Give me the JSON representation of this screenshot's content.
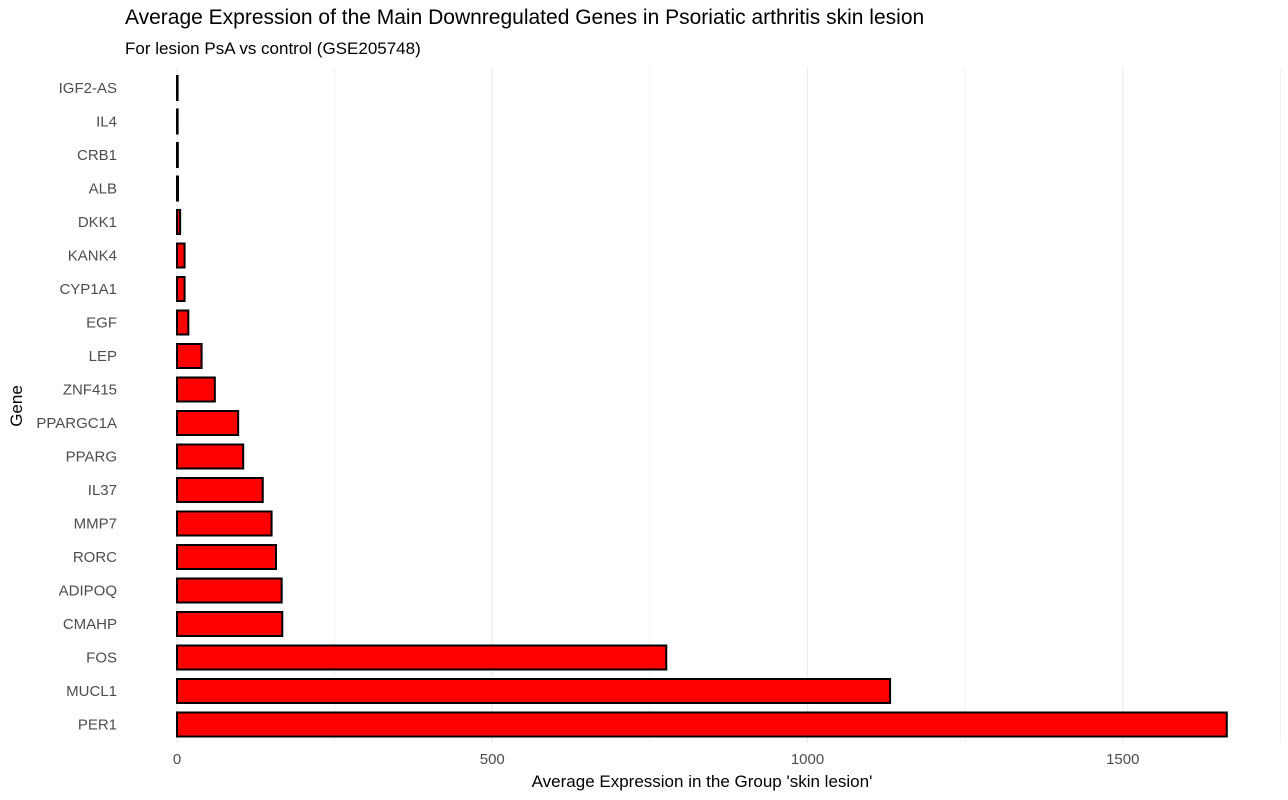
{
  "chart_data": {
    "type": "bar",
    "orientation": "horizontal",
    "title": "Average Expression of the Main Downregulated Genes in Psoriatic arthritis skin lesion",
    "subtitle": "For lesion PsA vs control (GSE205748)",
    "xlabel": "Average Expression in the Group 'skin lesion'",
    "ylabel": "Gene",
    "categories": [
      "IGF2-AS",
      "IL4",
      "CRB1",
      "ALB",
      "DKK1",
      "KANK4",
      "CYP1A1",
      "EGF",
      "LEP",
      "ZNF415",
      "PPARGC1A",
      "PPARG",
      "IL37",
      "MMP7",
      "RORC",
      "ADIPOQ",
      "CMAHP",
      "FOS",
      "MUCL1",
      "PER1"
    ],
    "values": [
      0.8,
      1.0,
      1.3,
      1.6,
      5,
      12,
      12,
      18,
      39,
      60,
      97,
      105,
      136,
      150,
      157,
      166,
      167,
      776,
      1131,
      1665
    ],
    "xlim": [
      -2,
      1665
    ],
    "xticks": [
      0,
      500,
      1000,
      1500
    ],
    "grid": true,
    "bar_color": "#FF0000",
    "bar_edge_color": "#000000",
    "legend": "none"
  }
}
